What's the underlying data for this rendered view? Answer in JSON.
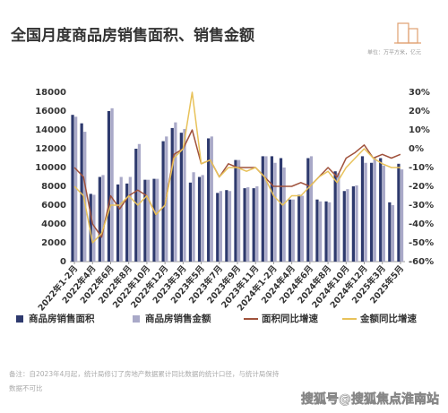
{
  "chart_data": {
    "type": "bar_line",
    "title": "全国月度商品房销售面积、销售金额",
    "unit": "单位：万平方米，亿元",
    "note": [
      "备注：自2023年4月起，统计局修订了房地产数据累计同比数据的统计口径，与统计局保持",
      "数据不可比"
    ],
    "watermark": "搜狐号@搜狐焦点淮南站",
    "categories": [
      "2022年1-2月",
      null,
      "2022年4月",
      null,
      "2022年6月",
      null,
      "2022年8月",
      null,
      "2022年10月",
      null,
      "2022年12月",
      null,
      "2023年3月",
      null,
      "2023年5月",
      null,
      "2023年7月",
      null,
      "2023年9月",
      null,
      "2023年11月",
      null,
      "2024年1-2月",
      null,
      "2024年4月",
      null,
      "2024年6月",
      null,
      "2024年8月",
      null,
      "2024年10月",
      null,
      "2024年12月",
      null,
      "2025年3月",
      null,
      "2025年5月"
    ],
    "series": [
      {
        "name": "商品房销售面积",
        "color": "#2e3a6e",
        "kind": "bar",
        "values": [
          15600,
          14700,
          7200,
          9000,
          16000,
          8200,
          8300,
          12000,
          8700,
          8800,
          12800,
          14200,
          13700,
          8400,
          9000,
          13100,
          7300,
          7600,
          10800,
          7800,
          7800,
          11200,
          11200,
          11000,
          6600,
          7100,
          11000,
          6600,
          6400,
          9600,
          7500,
          8000,
          11200,
          10500,
          11000,
          6300,
          10400
        ]
      },
      {
        "name": "商品房销售金额",
        "color": "#a9a9c8",
        "kind": "bar",
        "values": [
          15400,
          13800,
          7100,
          9200,
          16300,
          9000,
          9000,
          12500,
          8700,
          8800,
          13300,
          14800,
          14100,
          9500,
          9200,
          13300,
          7500,
          7500,
          10800,
          7900,
          8000,
          11200,
          10500,
          10000,
          6600,
          7000,
          11200,
          6400,
          6300,
          9400,
          7700,
          8100,
          10500,
          11000,
          10200,
          6000,
          9800
        ]
      },
      {
        "name": "面积同比增速",
        "color": "#a0523c",
        "kind": "line",
        "axis": "y2",
        "values": [
          -10,
          -15,
          -40,
          -47,
          -25,
          -32,
          -25,
          -22,
          -25,
          -35,
          -30,
          -3,
          0,
          10,
          -8,
          -6,
          -15,
          -8,
          -10,
          -10,
          -10,
          -15,
          -20,
          -20,
          -20,
          -18,
          -20,
          -15,
          -10,
          -15,
          -5,
          -2,
          2,
          -5,
          -3,
          -5,
          -3
        ]
      },
      {
        "name": "金额同比增速",
        "color": "#e8c25a",
        "kind": "line",
        "axis": "y2",
        "values": [
          -20,
          -25,
          -50,
          -45,
          -30,
          -30,
          -25,
          -30,
          -25,
          -35,
          -30,
          -5,
          0,
          30,
          -8,
          -6,
          -15,
          -10,
          -10,
          -12,
          -10,
          -15,
          -25,
          -30,
          -25,
          -25,
          -20,
          -15,
          -12,
          -18,
          -10,
          -5,
          0,
          -5,
          -8,
          -10,
          -10
        ]
      }
    ],
    "ylim": [
      0,
      18000
    ],
    "yticks": [
      0,
      2000,
      4000,
      6000,
      8000,
      10000,
      12000,
      14000,
      16000,
      18000
    ],
    "y2lim": [
      -60,
      30
    ],
    "y2ticks": [
      {
        "value": 30,
        "label": "30%"
      },
      {
        "value": 20,
        "label": "20%"
      },
      {
        "value": 10,
        "label": "10%"
      },
      {
        "value": 0,
        "label": "0%"
      },
      {
        "value": -10,
        "label": "-10%"
      },
      {
        "value": -20,
        "label": "-20%"
      },
      {
        "value": -30,
        "label": "-30%"
      },
      {
        "value": -40,
        "label": "-40%"
      },
      {
        "value": -50,
        "label": "-50%"
      },
      {
        "value": -60,
        "label": "-60%"
      }
    ],
    "grid": false
  }
}
